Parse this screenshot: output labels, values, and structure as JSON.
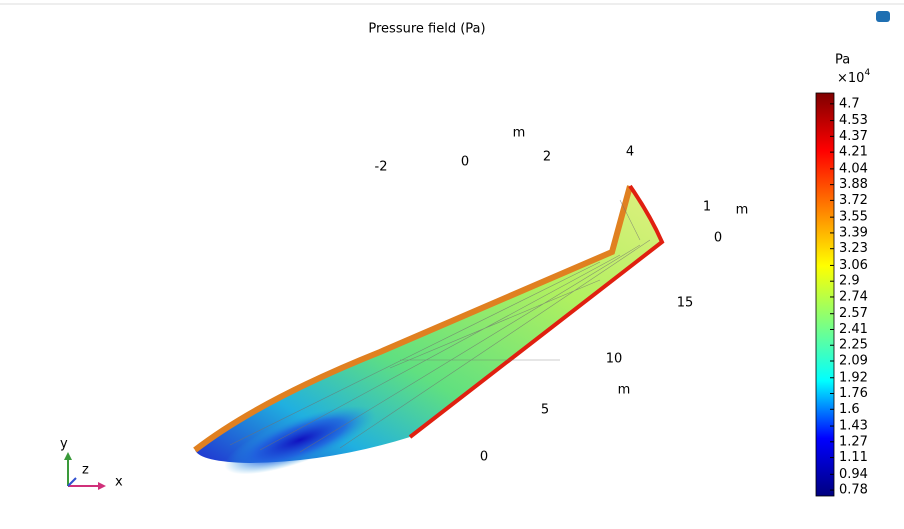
{
  "chart_data": {
    "type": "surface",
    "title": "Pressure field (Pa)",
    "colorbar": {
      "unit": "Pa",
      "scale_base": "×10",
      "scale_exponent": "4",
      "clim": [
        0.72,
        4.81
      ],
      "ticks": [
        4.7,
        4.53,
        4.37,
        4.21,
        4.04,
        3.88,
        3.72,
        3.55,
        3.39,
        3.23,
        3.06,
        2.9,
        2.74,
        2.57,
        2.41,
        2.25,
        2.09,
        1.92,
        1.76,
        1.6,
        1.43,
        1.27,
        1.11,
        0.94,
        0.78
      ],
      "colors": [
        "#00007f",
        "#0000ff",
        "#00ffff",
        "#7fff7f",
        "#ffff00",
        "#ff7f00",
        "#ff0000",
        "#7f0000"
      ]
    },
    "axes": {
      "x": {
        "ticks": [
          -2,
          0,
          2,
          4
        ],
        "unit": "m"
      },
      "y": {
        "ticks": [
          1,
          0
        ],
        "unit": "m"
      },
      "z": {
        "ticks": [
          15,
          10,
          5,
          0
        ],
        "unit": "m"
      }
    },
    "triad": {
      "x": "x",
      "y": "y",
      "z": "z"
    }
  }
}
